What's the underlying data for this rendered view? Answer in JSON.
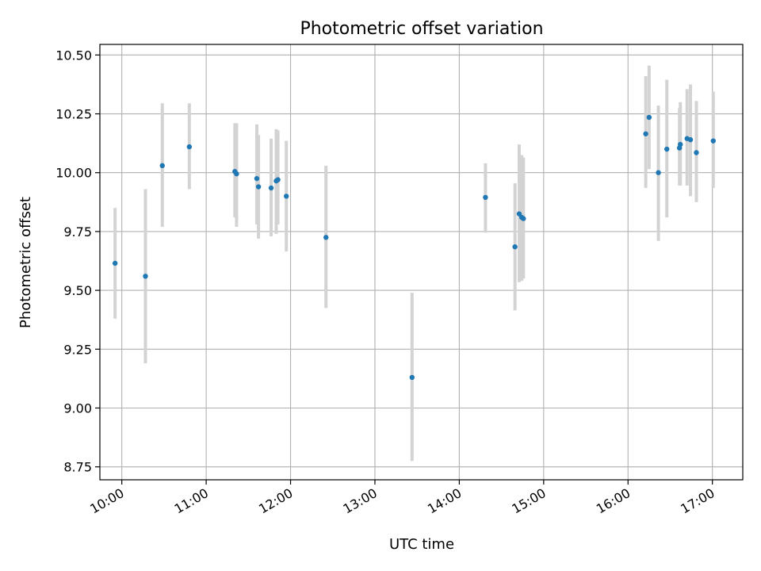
{
  "chart_data": {
    "type": "scatter",
    "title": "Photometric offset variation",
    "xlabel": "UTC time",
    "ylabel": "Photometric offset",
    "grid": true,
    "xlim": [
      9.74,
      17.36
    ],
    "ylim": [
      8.695,
      10.545
    ],
    "x_ticks": [
      {
        "value": 10,
        "label": "10:00"
      },
      {
        "value": 11,
        "label": "11:00"
      },
      {
        "value": 12,
        "label": "12:00"
      },
      {
        "value": 13,
        "label": "13:00"
      },
      {
        "value": 14,
        "label": "14:00"
      },
      {
        "value": 15,
        "label": "15:00"
      },
      {
        "value": 16,
        "label": "16:00"
      },
      {
        "value": 17,
        "label": "17:00"
      }
    ],
    "y_ticks": [
      {
        "value": 8.75,
        "label": "8.75"
      },
      {
        "value": 9.0,
        "label": "9.00"
      },
      {
        "value": 9.25,
        "label": "9.25"
      },
      {
        "value": 9.5,
        "label": "9.50"
      },
      {
        "value": 9.75,
        "label": "9.75"
      },
      {
        "value": 10.0,
        "label": "10.00"
      },
      {
        "value": 10.25,
        "label": "10.25"
      },
      {
        "value": 10.5,
        "label": "10.50"
      }
    ],
    "point_color": "#1f77b4",
    "errorbar_color": "#d3d3d3",
    "points": [
      {
        "x": 9.92,
        "y": 9.615,
        "ylow": 9.38,
        "yhigh": 9.85
      },
      {
        "x": 10.28,
        "y": 9.56,
        "ylow": 9.19,
        "yhigh": 9.93
      },
      {
        "x": 10.48,
        "y": 10.03,
        "ylow": 9.77,
        "yhigh": 10.295
      },
      {
        "x": 10.8,
        "y": 10.11,
        "ylow": 9.93,
        "yhigh": 10.295
      },
      {
        "x": 11.34,
        "y": 10.005,
        "ylow": 9.81,
        "yhigh": 10.21
      },
      {
        "x": 11.36,
        "y": 9.995,
        "ylow": 9.77,
        "yhigh": 10.21
      },
      {
        "x": 11.6,
        "y": 9.975,
        "ylow": 9.78,
        "yhigh": 10.205
      },
      {
        "x": 11.62,
        "y": 9.94,
        "ylow": 9.72,
        "yhigh": 10.16
      },
      {
        "x": 11.77,
        "y": 9.935,
        "ylow": 9.73,
        "yhigh": 10.145
      },
      {
        "x": 11.83,
        "y": 9.965,
        "ylow": 9.74,
        "yhigh": 10.185
      },
      {
        "x": 11.85,
        "y": 9.97,
        "ylow": 9.78,
        "yhigh": 10.18
      },
      {
        "x": 11.95,
        "y": 9.9,
        "ylow": 9.665,
        "yhigh": 10.135
      },
      {
        "x": 12.42,
        "y": 9.725,
        "ylow": 9.425,
        "yhigh": 10.03
      },
      {
        "x": 13.44,
        "y": 9.13,
        "ylow": 8.775,
        "yhigh": 9.49
      },
      {
        "x": 14.31,
        "y": 9.895,
        "ylow": 9.745,
        "yhigh": 10.04
      },
      {
        "x": 14.66,
        "y": 9.685,
        "ylow": 9.415,
        "yhigh": 9.955
      },
      {
        "x": 14.71,
        "y": 9.825,
        "ylow": 9.535,
        "yhigh": 10.12
      },
      {
        "x": 14.74,
        "y": 9.81,
        "ylow": 9.54,
        "yhigh": 10.075
      },
      {
        "x": 14.76,
        "y": 9.805,
        "ylow": 9.55,
        "yhigh": 10.065
      },
      {
        "x": 16.21,
        "y": 10.165,
        "ylow": 9.935,
        "yhigh": 10.41
      },
      {
        "x": 16.25,
        "y": 10.235,
        "ylow": 10.015,
        "yhigh": 10.455
      },
      {
        "x": 16.36,
        "y": 10.0,
        "ylow": 9.71,
        "yhigh": 10.285
      },
      {
        "x": 16.46,
        "y": 10.1,
        "ylow": 9.81,
        "yhigh": 10.395
      },
      {
        "x": 16.61,
        "y": 10.105,
        "ylow": 9.945,
        "yhigh": 10.275
      },
      {
        "x": 16.62,
        "y": 10.12,
        "ylow": 9.945,
        "yhigh": 10.3
      },
      {
        "x": 16.7,
        "y": 10.145,
        "ylow": 9.945,
        "yhigh": 10.355
      },
      {
        "x": 16.74,
        "y": 10.14,
        "ylow": 9.9,
        "yhigh": 10.375
      },
      {
        "x": 16.81,
        "y": 10.085,
        "ylow": 9.875,
        "yhigh": 10.305
      },
      {
        "x": 17.01,
        "y": 10.135,
        "ylow": 9.935,
        "yhigh": 10.345
      }
    ]
  }
}
